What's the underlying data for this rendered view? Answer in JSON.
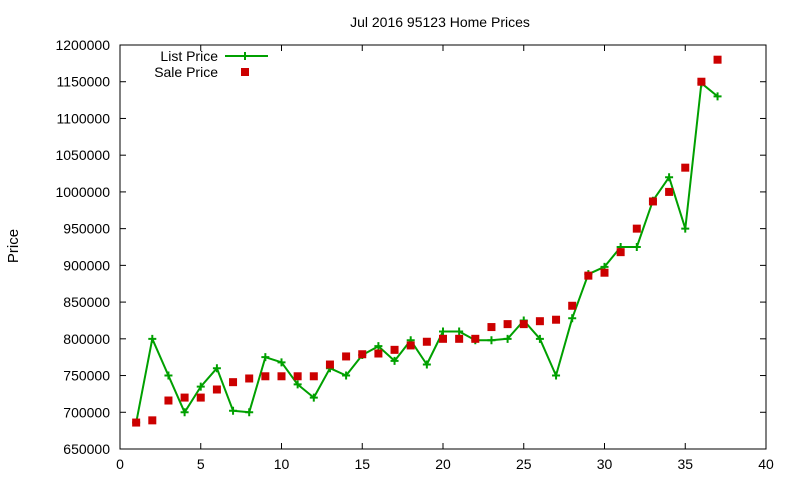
{
  "chart_data": {
    "type": "line",
    "title": "Jul 2016 95123 Home Prices",
    "xlabel": "",
    "ylabel": "Price",
    "xlim": [
      0,
      40
    ],
    "ylim": [
      650000,
      1200000
    ],
    "x_ticks": [
      "0",
      "5",
      "10",
      "15",
      "20",
      "25",
      "30",
      "35",
      "40"
    ],
    "y_ticks": [
      "650000",
      "700000",
      "750000",
      "800000",
      "850000",
      "900000",
      "950000",
      "1000000",
      "1050000",
      "1100000",
      "1150000",
      "1200000"
    ],
    "grid": false,
    "legend_position": "top-left",
    "series": [
      {
        "name": "List Price",
        "style": "line-points",
        "marker": "plus",
        "color": "#00a000",
        "x": [
          1,
          2,
          3,
          4,
          5,
          6,
          7,
          8,
          9,
          10,
          11,
          12,
          13,
          14,
          15,
          16,
          17,
          18,
          19,
          20,
          21,
          22,
          23,
          24,
          25,
          26,
          27,
          28,
          29,
          30,
          31,
          32,
          33,
          34,
          35,
          36,
          37
        ],
        "values": [
          686000,
          800000,
          750000,
          700000,
          735000,
          760000,
          702000,
          700000,
          775000,
          768000,
          738000,
          720000,
          760000,
          750000,
          778000,
          790000,
          770000,
          798000,
          765000,
          810000,
          810000,
          798000,
          798000,
          800000,
          825000,
          800000,
          750000,
          828000,
          888000,
          898000,
          925000,
          925000,
          988000,
          1020000,
          950000,
          1148000,
          1130000
        ]
      },
      {
        "name": "Sale Price",
        "style": "points",
        "marker": "square",
        "color": "#cc0000",
        "x": [
          1,
          2,
          3,
          4,
          5,
          6,
          7,
          8,
          9,
          10,
          11,
          12,
          13,
          14,
          15,
          16,
          17,
          18,
          19,
          20,
          21,
          22,
          23,
          24,
          25,
          26,
          27,
          28,
          29,
          30,
          31,
          32,
          33,
          34,
          35,
          36,
          37
        ],
        "values": [
          686000,
          689000,
          716000,
          720000,
          720000,
          731000,
          741000,
          746000,
          749000,
          749000,
          749000,
          749000,
          765000,
          776000,
          779000,
          780000,
          785000,
          791000,
          796000,
          800000,
          800000,
          800000,
          816000,
          820000,
          820000,
          824000,
          826000,
          845000,
          886000,
          890000,
          918000,
          950000,
          987000,
          1000000,
          1033000,
          1150000,
          1180000
        ]
      }
    ]
  }
}
